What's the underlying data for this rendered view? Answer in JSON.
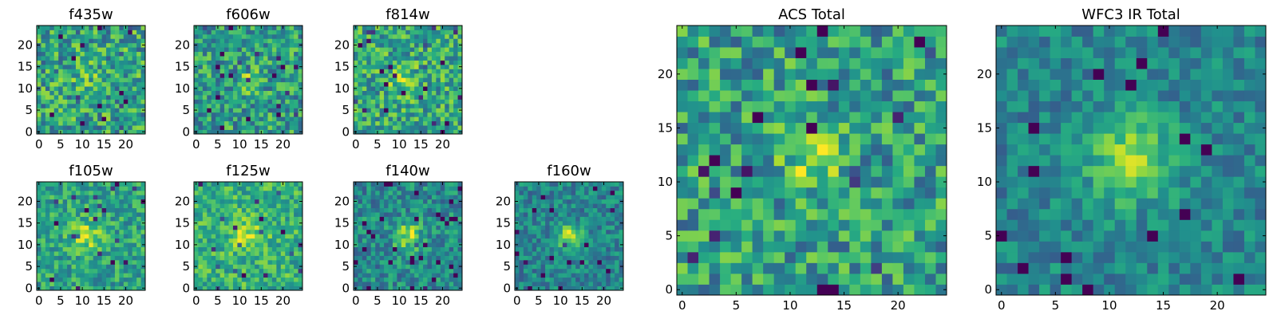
{
  "figure": {
    "description_free": true,
    "colormap": "viridis",
    "colors": {
      "background": "#ffffff",
      "axes": "#000000",
      "viridis_low": "#440154",
      "viridis_mid": "#21918c",
      "viridis_high": "#fde725"
    }
  },
  "chart_data": [
    {
      "type": "heatmap",
      "title": "f435w",
      "grid_size": 25,
      "xticks": [
        "0",
        "5",
        "10",
        "15",
        "20"
      ],
      "yticks": [
        "0",
        "5",
        "10",
        "15",
        "20"
      ],
      "xlim": [
        0,
        25
      ],
      "ylim": [
        0,
        25
      ],
      "peak": [
        11,
        13
      ],
      "peak_strength": 0.12,
      "peak_sigma": 2.2,
      "noise": 0.28,
      "base": 0.58,
      "seed": 11
    },
    {
      "type": "heatmap",
      "title": "f606w",
      "grid_size": 25,
      "xticks": [
        "0",
        "5",
        "10",
        "15",
        "20"
      ],
      "yticks": [
        "0",
        "5",
        "10",
        "15",
        "20"
      ],
      "xlim": [
        0,
        25
      ],
      "ylim": [
        0,
        25
      ],
      "peak": [
        12,
        12
      ],
      "peak_strength": 0.18,
      "peak_sigma": 2.0,
      "noise": 0.26,
      "base": 0.56,
      "seed": 23
    },
    {
      "type": "heatmap",
      "title": "f814w",
      "grid_size": 25,
      "xticks": [
        "0",
        "5",
        "10",
        "15",
        "20"
      ],
      "yticks": [
        "0",
        "5",
        "10",
        "15",
        "20"
      ],
      "xlim": [
        0,
        25
      ],
      "ylim": [
        0,
        25
      ],
      "peak": [
        11,
        12
      ],
      "peak_strength": 0.22,
      "peak_sigma": 2.3,
      "noise": 0.26,
      "base": 0.6,
      "seed": 37
    },
    {
      "type": "heatmap",
      "title": "f105w",
      "grid_size": 25,
      "xticks": [
        "0",
        "5",
        "10",
        "15",
        "20"
      ],
      "yticks": [
        "0",
        "5",
        "10",
        "15",
        "20"
      ],
      "xlim": [
        0,
        25
      ],
      "ylim": [
        0,
        25
      ],
      "peak": [
        11,
        12
      ],
      "peak_strength": 0.28,
      "peak_sigma": 2.6,
      "noise": 0.2,
      "base": 0.58,
      "seed": 41
    },
    {
      "type": "heatmap",
      "title": "f125w",
      "grid_size": 25,
      "xticks": [
        "0",
        "5",
        "10",
        "15",
        "20"
      ],
      "yticks": [
        "0",
        "5",
        "10",
        "15",
        "20"
      ],
      "xlim": [
        0,
        25
      ],
      "ylim": [
        0,
        25
      ],
      "peak": [
        12,
        12
      ],
      "peak_strength": 0.25,
      "peak_sigma": 2.6,
      "noise": 0.2,
      "base": 0.64,
      "seed": 53
    },
    {
      "type": "heatmap",
      "title": "f140w",
      "grid_size": 25,
      "xticks": [
        "0",
        "5",
        "10",
        "15",
        "20"
      ],
      "yticks": [
        "0",
        "5",
        "10",
        "15",
        "20"
      ],
      "xlim": [
        0,
        25
      ],
      "ylim": [
        0,
        25
      ],
      "peak": [
        12,
        12
      ],
      "peak_strength": 0.4,
      "peak_sigma": 2.2,
      "noise": 0.2,
      "base": 0.48,
      "seed": 67
    },
    {
      "type": "heatmap",
      "title": "f160w",
      "grid_size": 25,
      "xticks": [
        "0",
        "5",
        "10",
        "15",
        "20"
      ],
      "yticks": [
        "0",
        "5",
        "10",
        "15",
        "20"
      ],
      "xlim": [
        0,
        25
      ],
      "ylim": [
        0,
        25
      ],
      "peak": [
        12,
        12
      ],
      "peak_strength": 0.45,
      "peak_sigma": 2.0,
      "noise": 0.18,
      "base": 0.46,
      "seed": 79
    },
    {
      "type": "heatmap",
      "title": "ACS Total",
      "grid_size": 25,
      "xticks": [
        "0",
        "5",
        "10",
        "15",
        "20"
      ],
      "yticks": [
        "0",
        "5",
        "10",
        "15",
        "20"
      ],
      "xlim": [
        0,
        25
      ],
      "ylim": [
        0,
        25
      ],
      "peak": [
        12,
        12
      ],
      "peak_strength": 0.32,
      "peak_sigma": 1.8,
      "noise": 0.26,
      "base": 0.56,
      "seed": 97
    },
    {
      "type": "heatmap",
      "title": "WFC3 IR Total",
      "grid_size": 25,
      "xticks": [
        "0",
        "5",
        "10",
        "15",
        "20"
      ],
      "yticks": [
        "0",
        "5",
        "10",
        "15",
        "20"
      ],
      "xlim": [
        0,
        25
      ],
      "ylim": [
        0,
        25
      ],
      "peak": [
        12,
        12
      ],
      "peak_strength": 0.45,
      "peak_sigma": 2.6,
      "noise": 0.16,
      "base": 0.46,
      "seed": 113
    }
  ]
}
